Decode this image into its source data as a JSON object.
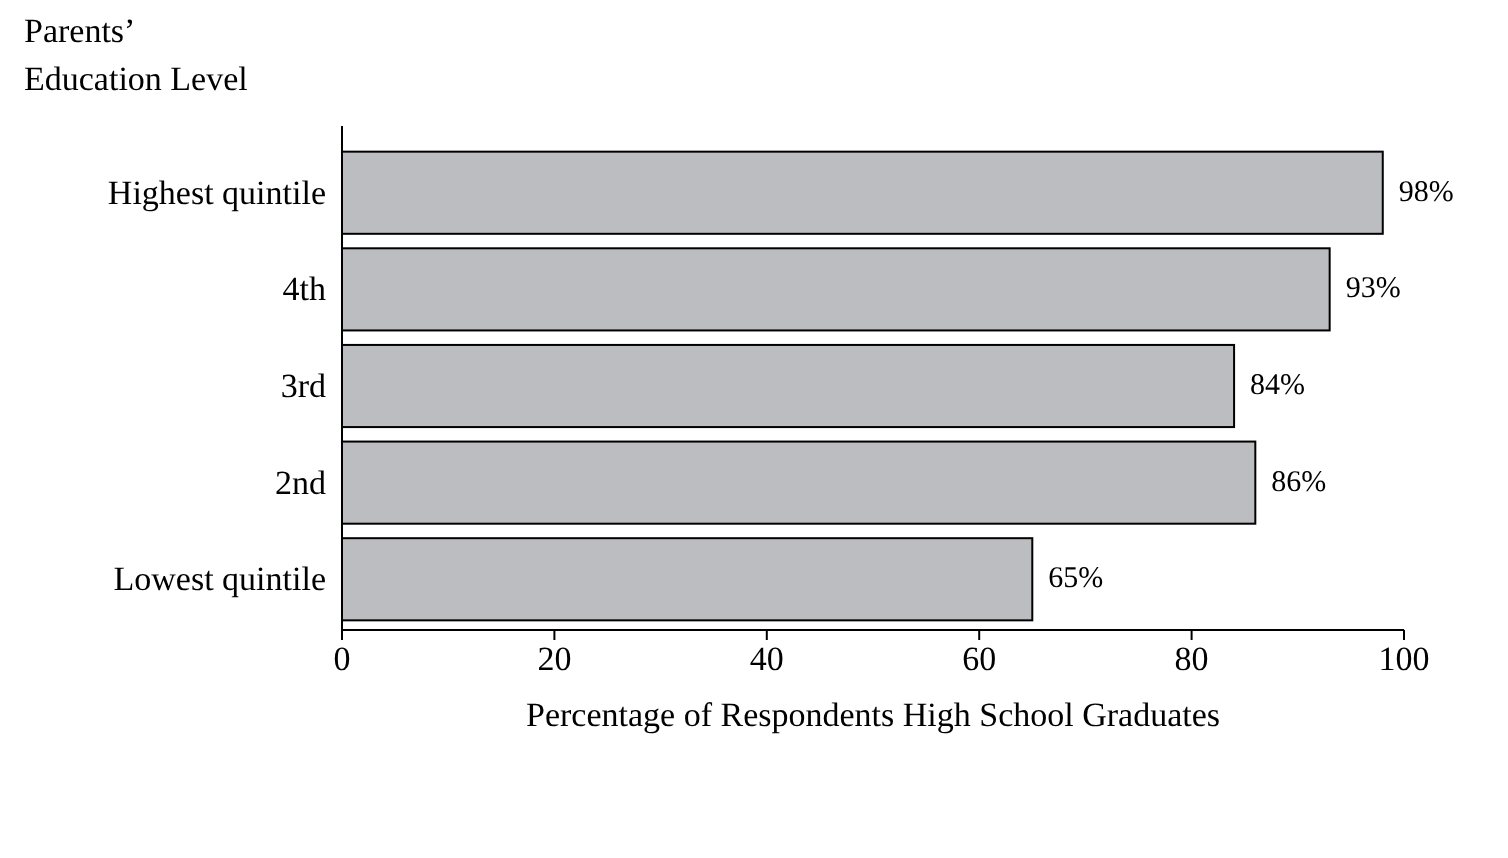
{
  "chart_data": {
    "type": "bar",
    "orientation": "horizontal",
    "ylabel": "Parents’\nEducation Level",
    "xlabel": "Percentage of Respondents High School Graduates",
    "categories": [
      "Highest quintile",
      "4th",
      "3rd",
      "2nd",
      "Lowest quintile"
    ],
    "values": [
      98,
      93,
      84,
      86,
      65
    ],
    "value_labels": [
      "98%",
      "93%",
      "84%",
      "86%",
      "65%"
    ],
    "color": "#bcbdc0",
    "xlim": [
      0,
      100
    ],
    "xticks": [
      0,
      20,
      40,
      60,
      80,
      100
    ],
    "grid": false
  }
}
